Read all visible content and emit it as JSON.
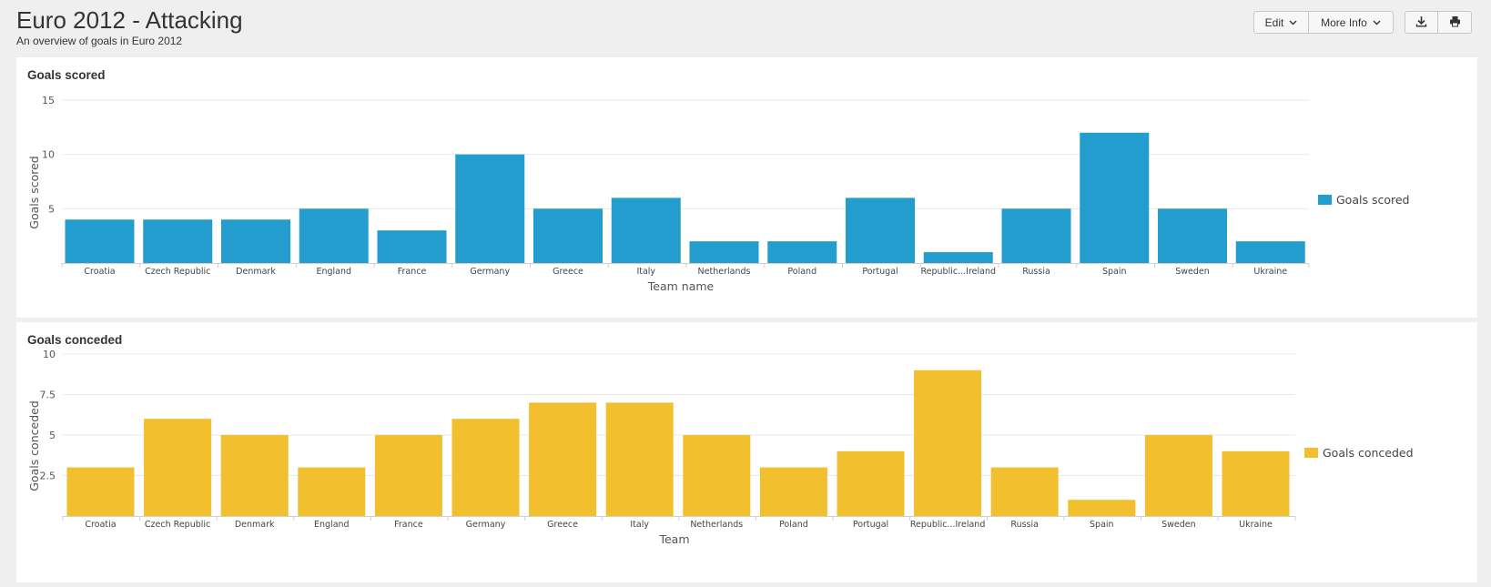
{
  "page": {
    "title": "Euro 2012 - Attacking",
    "subtitle": "An overview of goals in Euro 2012"
  },
  "toolbar": {
    "edit_label": "Edit",
    "more_info_label": "More Info",
    "download_icon": "download-icon",
    "print_icon": "print-icon"
  },
  "panels": [
    {
      "title": "Goals scored"
    },
    {
      "title": "Goals conceded"
    }
  ],
  "chart_data": [
    {
      "type": "bar",
      "title": "Goals scored",
      "xlabel": "Team name",
      "ylabel": "Goals scored",
      "categories": [
        "Croatia",
        "Czech Republic",
        "Denmark",
        "England",
        "France",
        "Germany",
        "Greece",
        "Italy",
        "Netherlands",
        "Poland",
        "Portugal",
        "Republic...Ireland",
        "Russia",
        "Spain",
        "Sweden",
        "Ukraine"
      ],
      "series": [
        {
          "name": "Goals scored",
          "color": "#239dce",
          "values": [
            4,
            4,
            4,
            5,
            3,
            10,
            5,
            6,
            2,
            2,
            6,
            1,
            5,
            12,
            5,
            2
          ]
        }
      ],
      "ylim": [
        0,
        15
      ],
      "yticks": [
        "5",
        "10",
        "15"
      ],
      "grid": true,
      "legend_position": "right"
    },
    {
      "type": "bar",
      "title": "Goals conceded",
      "xlabel": "Team",
      "ylabel": "Goals conceded",
      "categories": [
        "Croatia",
        "Czech Republic",
        "Denmark",
        "England",
        "France",
        "Germany",
        "Greece",
        "Italy",
        "Netherlands",
        "Poland",
        "Portugal",
        "Republic...Ireland",
        "Russia",
        "Spain",
        "Sweden",
        "Ukraine"
      ],
      "series": [
        {
          "name": "Goals conceded",
          "color": "#f2bf2f",
          "values": [
            3,
            6,
            5,
            3,
            5,
            6,
            7,
            7,
            5,
            3,
            4,
            9,
            3,
            1,
            5,
            4
          ]
        }
      ],
      "ylim": [
        0,
        10
      ],
      "yticks": [
        "2.5",
        "5",
        "7.5",
        "10"
      ],
      "grid": true,
      "legend_position": "right"
    }
  ]
}
